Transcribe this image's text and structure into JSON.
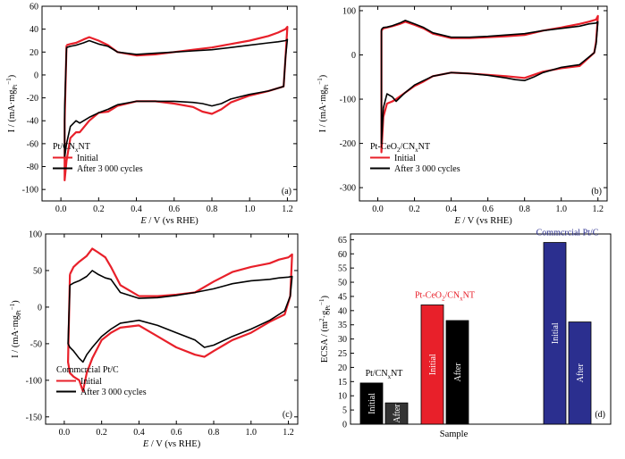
{
  "chart_data": [
    {
      "id": "a",
      "type": "line",
      "panel_label": "(a)",
      "xlabel": "E / V (vs RHE)",
      "ylabel": "I / (mA·mgPt⁻¹)",
      "xlim": [
        -0.1,
        1.25
      ],
      "ylim": [
        -110,
        60
      ],
      "xticks": [
        0.0,
        0.2,
        0.4,
        0.6,
        0.8,
        1.0,
        1.2
      ],
      "yticks": [
        -100,
        -80,
        -60,
        -40,
        -20,
        0,
        20,
        40,
        60
      ],
      "sample_label": "Pt/CNxNT",
      "legend_position": "lower-left",
      "series": [
        {
          "name": "Initial",
          "color": "#e8202a",
          "x": [
            0.03,
            0.05,
            0.08,
            0.12,
            0.15,
            0.2,
            0.25,
            0.3,
            0.4,
            0.5,
            0.6,
            0.7,
            0.8,
            0.9,
            1.0,
            1.1,
            1.15,
            1.19,
            1.2,
            1.19,
            1.18,
            1.1,
            1.0,
            0.9,
            0.85,
            0.8,
            0.75,
            0.7,
            0.6,
            0.5,
            0.4,
            0.3,
            0.25,
            0.2,
            0.15,
            0.1,
            0.08,
            0.05,
            0.03,
            0.02,
            0.02,
            0.03
          ],
          "y": [
            26,
            27,
            28,
            31,
            33,
            30,
            26,
            20,
            17,
            18,
            20,
            22,
            24,
            27,
            30,
            34,
            37,
            40,
            42,
            15,
            -10,
            -14,
            -18,
            -24,
            -30,
            -34,
            -32,
            -28,
            -25,
            -23,
            -23,
            -27,
            -32,
            -33,
            -40,
            -50,
            -50,
            -55,
            -75,
            -92,
            -40,
            26
          ]
        },
        {
          "name": "After 3 000 cycles",
          "color": "#000000",
          "x": [
            0.03,
            0.05,
            0.08,
            0.12,
            0.15,
            0.2,
            0.25,
            0.3,
            0.4,
            0.5,
            0.6,
            0.7,
            0.8,
            0.9,
            1.0,
            1.1,
            1.15,
            1.19,
            1.2,
            1.19,
            1.18,
            1.1,
            1.0,
            0.9,
            0.85,
            0.8,
            0.75,
            0.7,
            0.6,
            0.5,
            0.4,
            0.3,
            0.25,
            0.2,
            0.15,
            0.1,
            0.08,
            0.05,
            0.03,
            0.02,
            0.02,
            0.03
          ],
          "y": [
            24,
            25,
            26,
            28,
            30,
            27,
            25,
            20,
            18,
            19,
            20,
            21,
            22,
            24,
            26,
            28,
            29,
            30,
            31,
            15,
            -10,
            -14,
            -17,
            -21,
            -25,
            -27,
            -25,
            -24,
            -23,
            -23,
            -23,
            -26,
            -30,
            -33,
            -37,
            -42,
            -40,
            -45,
            -60,
            -72,
            -30,
            24
          ]
        }
      ]
    },
    {
      "id": "b",
      "type": "line",
      "panel_label": "(b)",
      "xlabel": "E / V (vs RHE)",
      "ylabel": "I / (mA·mgPt⁻¹)",
      "xlim": [
        -0.1,
        1.25
      ],
      "ylim": [
        -330,
        110
      ],
      "xticks": [
        0.0,
        0.2,
        0.4,
        0.6,
        0.8,
        1.0,
        1.2
      ],
      "yticks": [
        -300,
        -200,
        -100,
        0,
        100
      ],
      "sample_label": "Pt-CeO2/CNxNT",
      "legend_position": "lower-left",
      "series": [
        {
          "name": "Initial",
          "color": "#e8202a",
          "x": [
            0.02,
            0.03,
            0.05,
            0.08,
            0.12,
            0.15,
            0.2,
            0.25,
            0.3,
            0.4,
            0.5,
            0.6,
            0.7,
            0.8,
            0.9,
            1.0,
            1.1,
            1.15,
            1.19,
            1.2,
            1.19,
            1.18,
            1.1,
            1.0,
            0.9,
            0.85,
            0.8,
            0.75,
            0.7,
            0.6,
            0.5,
            0.4,
            0.3,
            0.25,
            0.2,
            0.15,
            0.1,
            0.08,
            0.05,
            0.03,
            0.02,
            0.02
          ],
          "y": [
            55,
            60,
            62,
            65,
            70,
            75,
            68,
            60,
            48,
            38,
            38,
            40,
            42,
            45,
            55,
            62,
            70,
            75,
            80,
            88,
            30,
            5,
            -25,
            -30,
            -38,
            -45,
            -52,
            -50,
            -48,
            -45,
            -42,
            -40,
            -48,
            -60,
            -70,
            -85,
            -100,
            -105,
            -110,
            -140,
            -220,
            55
          ]
        },
        {
          "name": "After 3 000 cycles",
          "color": "#000000",
          "x": [
            0.02,
            0.03,
            0.05,
            0.08,
            0.12,
            0.15,
            0.2,
            0.25,
            0.3,
            0.4,
            0.5,
            0.6,
            0.7,
            0.8,
            0.9,
            1.0,
            1.1,
            1.15,
            1.19,
            1.2,
            1.19,
            1.18,
            1.1,
            1.0,
            0.9,
            0.85,
            0.8,
            0.75,
            0.7,
            0.6,
            0.5,
            0.4,
            0.3,
            0.25,
            0.2,
            0.15,
            0.1,
            0.08,
            0.05,
            0.03,
            0.02,
            0.02
          ],
          "y": [
            58,
            62,
            63,
            66,
            72,
            78,
            70,
            62,
            50,
            40,
            40,
            42,
            45,
            48,
            55,
            60,
            65,
            70,
            72,
            75,
            25,
            5,
            -22,
            -28,
            -40,
            -50,
            -58,
            -56,
            -52,
            -46,
            -42,
            -40,
            -48,
            -58,
            -68,
            -85,
            -105,
            -95,
            -88,
            -120,
            -200,
            58
          ]
        }
      ]
    },
    {
      "id": "c",
      "type": "line",
      "panel_label": "(c)",
      "xlabel": "E / V (vs RHE)",
      "ylabel": "I / (mA·mgPt⁻¹)",
      "xlim": [
        -0.1,
        1.25
      ],
      "ylim": [
        -160,
        100
      ],
      "xticks": [
        0.0,
        0.2,
        0.4,
        0.6,
        0.8,
        1.0,
        1.2
      ],
      "yticks": [
        -150,
        -100,
        -50,
        0,
        50,
        100
      ],
      "sample_label": "Commcrcial Pt/C",
      "legend_position": "lower-left",
      "series": [
        {
          "name": "Initial",
          "color": "#e8202a",
          "x": [
            0.03,
            0.05,
            0.08,
            0.12,
            0.15,
            0.18,
            0.22,
            0.25,
            0.3,
            0.4,
            0.5,
            0.6,
            0.7,
            0.8,
            0.9,
            1.0,
            1.1,
            1.15,
            1.2,
            1.22,
            1.21,
            1.18,
            1.1,
            1.0,
            0.9,
            0.8,
            0.75,
            0.7,
            0.6,
            0.5,
            0.4,
            0.3,
            0.25,
            0.2,
            0.15,
            0.12,
            0.1,
            0.08,
            0.05,
            0.03,
            0.02,
            0.03
          ],
          "y": [
            45,
            55,
            62,
            70,
            80,
            75,
            68,
            55,
            30,
            15,
            15,
            17,
            20,
            35,
            48,
            55,
            60,
            65,
            68,
            72,
            15,
            -10,
            -20,
            -35,
            -45,
            -60,
            -68,
            -65,
            -55,
            -40,
            -25,
            -28,
            -35,
            -45,
            -70,
            -90,
            -115,
            -100,
            -95,
            -90,
            -75,
            45
          ]
        },
        {
          "name": "After 3 000 cycles",
          "color": "#000000",
          "x": [
            0.03,
            0.05,
            0.08,
            0.12,
            0.15,
            0.18,
            0.22,
            0.25,
            0.3,
            0.4,
            0.5,
            0.6,
            0.7,
            0.8,
            0.9,
            1.0,
            1.1,
            1.15,
            1.2,
            1.22,
            1.21,
            1.18,
            1.1,
            1.0,
            0.9,
            0.8,
            0.75,
            0.7,
            0.6,
            0.5,
            0.4,
            0.3,
            0.25,
            0.2,
            0.15,
            0.12,
            0.1,
            0.08,
            0.05,
            0.03,
            0.02,
            0.03
          ],
          "y": [
            30,
            33,
            36,
            42,
            50,
            45,
            40,
            38,
            20,
            12,
            13,
            16,
            20,
            25,
            32,
            36,
            38,
            40,
            41,
            42,
            15,
            -5,
            -18,
            -30,
            -40,
            -52,
            -55,
            -45,
            -35,
            -25,
            -18,
            -22,
            -30,
            -40,
            -55,
            -65,
            -75,
            -70,
            -60,
            -55,
            -50,
            30
          ]
        }
      ]
    },
    {
      "id": "d",
      "type": "bar",
      "panel_label": "(d)",
      "xlabel": "Sample",
      "ylabel": "ECSA / (m²·gPt⁻¹)",
      "ylim": [
        0,
        67
      ],
      "yticks": [
        0,
        5,
        10,
        15,
        20,
        25,
        30,
        35,
        40,
        45,
        50,
        55,
        60,
        65
      ],
      "groups": [
        {
          "name": "Pt/CNxNT",
          "initial": 14.5,
          "after": 7.5,
          "initial_color": "#000000",
          "after_color": "#333333",
          "label_color": "#000000"
        },
        {
          "name": "Pt-CeO2/CNxNT",
          "initial": 42.0,
          "after": 36.5,
          "initial_color": "#e8202a",
          "after_color": "#000000",
          "label_color": "#e8202a"
        },
        {
          "name": "Commcrcial Pt/C",
          "initial": 64.0,
          "after": 36.0,
          "initial_color": "#2b2f8f",
          "after_color": "#2b2f8f",
          "label_color": "#2b2f8f"
        }
      ],
      "bar_labels": {
        "initial": "Initial",
        "after": "After"
      }
    }
  ]
}
